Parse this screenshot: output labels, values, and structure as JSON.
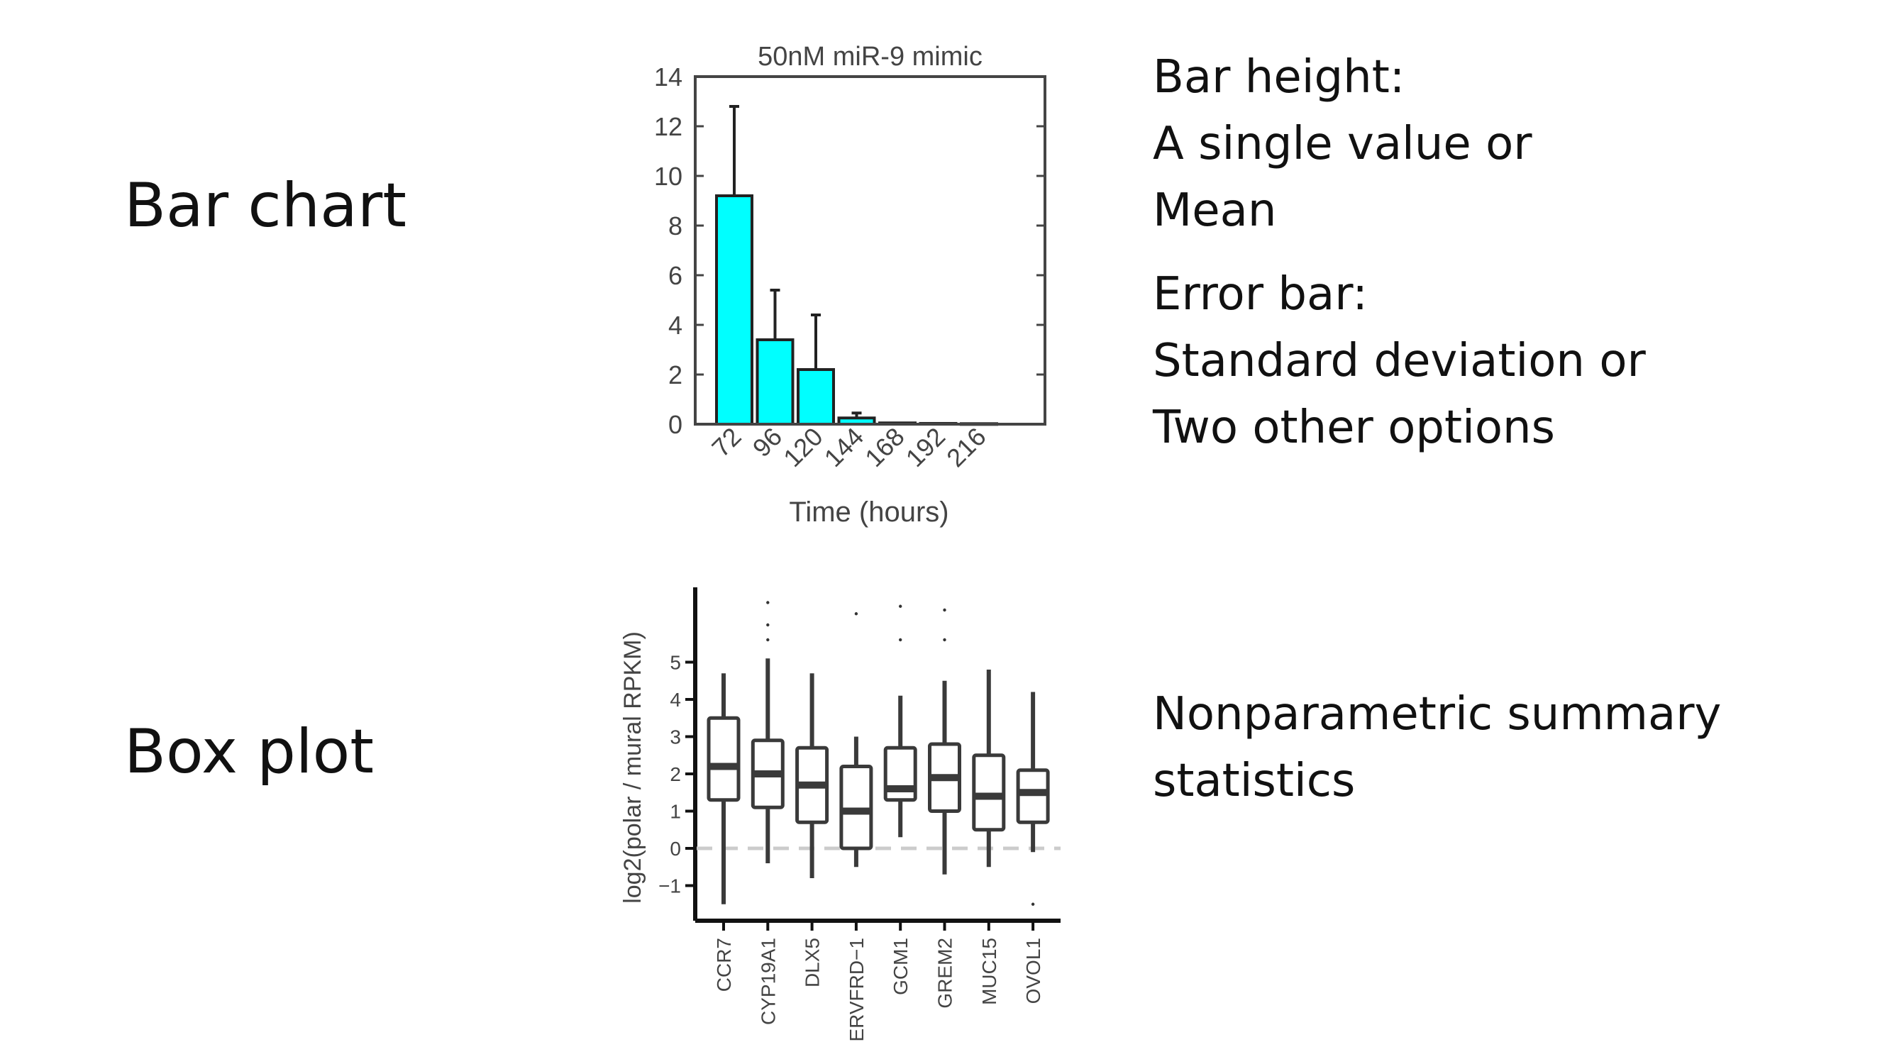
{
  "labels": {
    "bar_chart": "Bar chart",
    "box_plot": "Box plot"
  },
  "descriptions": {
    "bar": {
      "lines1": [
        "Bar height:",
        "A single value or",
        "Mean"
      ],
      "lines2": [
        "Error bar:",
        "Standard deviation or",
        "Two other options"
      ]
    },
    "box": {
      "lines": [
        "Nonparametric summary",
        "statistics"
      ]
    }
  },
  "colors": {
    "bar_fill": "#00FFFF",
    "box_stroke": "#3a3a3a",
    "zero_line": "#cccccc"
  },
  "chart_data": [
    {
      "type": "bar",
      "title": "50nM miR-9 mimic",
      "xlabel": "Time (hours)",
      "ylabel": "",
      "categories": [
        "72",
        "96",
        "120",
        "144",
        "168",
        "192",
        "216"
      ],
      "values": [
        9.2,
        3.4,
        2.2,
        0.25,
        0.05,
        0.03,
        0.02
      ],
      "error": [
        3.6,
        2.0,
        2.2,
        0.2,
        0,
        0,
        0
      ],
      "ylim": [
        0,
        14
      ],
      "yticks": [
        "0",
        "2",
        "4",
        "6",
        "8",
        "10",
        "12",
        "14"
      ],
      "grid": false
    },
    {
      "type": "box",
      "title": "",
      "ylabel": "log2(polar / mural RPKM)",
      "xlabel": "",
      "categories": [
        "CCR7",
        "CYP19A1",
        "DLX5",
        "ERVFRD−1",
        "GCM1",
        "GREM2",
        "MUC15",
        "OVOL1"
      ],
      "boxes": [
        {
          "min": -1.5,
          "q1": 1.3,
          "median": 2.2,
          "q3": 3.5,
          "max": 4.7,
          "outliers": []
        },
        {
          "min": -0.4,
          "q1": 1.1,
          "median": 2.0,
          "q3": 2.9,
          "max": 5.1,
          "outliers": [
            5.6,
            6.0,
            6.6
          ]
        },
        {
          "min": -0.8,
          "q1": 0.7,
          "median": 1.7,
          "q3": 2.7,
          "max": 4.7,
          "outliers": []
        },
        {
          "min": -0.5,
          "q1": 0.0,
          "median": 1.0,
          "q3": 2.2,
          "max": 3.0,
          "outliers": [
            6.3
          ]
        },
        {
          "min": 0.3,
          "q1": 1.3,
          "median": 1.6,
          "q3": 2.7,
          "max": 4.1,
          "outliers": [
            5.6,
            6.5
          ]
        },
        {
          "min": -0.7,
          "q1": 1.0,
          "median": 1.9,
          "q3": 2.8,
          "max": 4.5,
          "outliers": [
            5.6,
            6.4
          ]
        },
        {
          "min": -0.5,
          "q1": 0.5,
          "median": 1.4,
          "q3": 2.5,
          "max": 4.8,
          "outliers": []
        },
        {
          "min": -0.1,
          "q1": 0.7,
          "median": 1.5,
          "q3": 2.1,
          "max": 4.2,
          "outliers": [
            -1.5
          ]
        }
      ],
      "yticks": [
        "−1",
        "0",
        "1",
        "2",
        "3",
        "4",
        "5"
      ],
      "ylim": [
        -2,
        7
      ],
      "reference_line": 0,
      "grid": false
    }
  ]
}
